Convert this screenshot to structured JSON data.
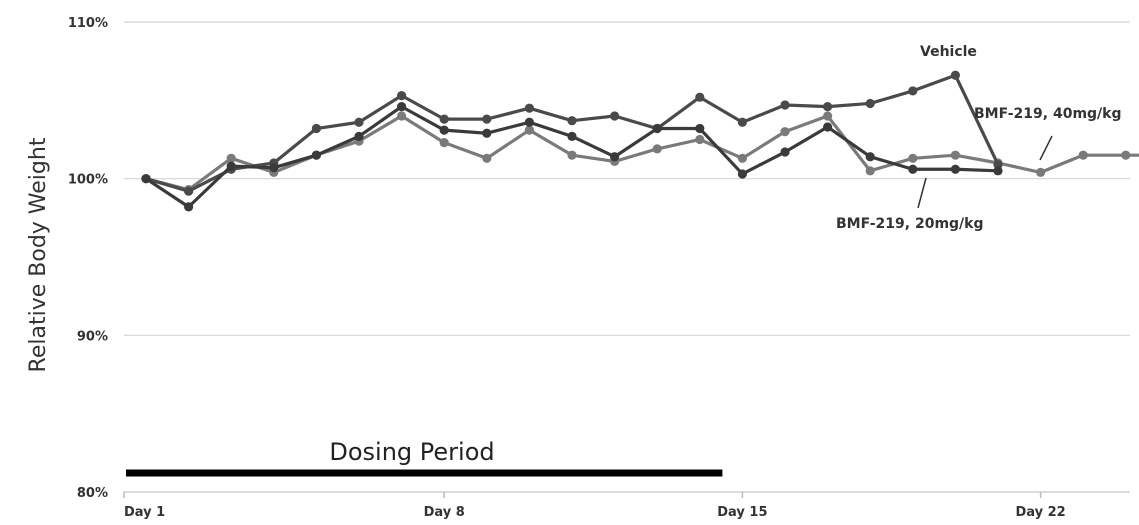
{
  "chart_data": {
    "type": "line",
    "title": "",
    "xlabel": "",
    "ylabel": "Relative Body Weight",
    "ylim": [
      80,
      110
    ],
    "yticks": [
      "110%",
      "100%",
      "90%",
      "80%"
    ],
    "ytick_values": [
      110,
      100,
      90,
      80
    ],
    "xlim": [
      1,
      26.5
    ],
    "xticks": [
      "Day 1",
      "Day 8",
      "Day 15",
      "Day 22"
    ],
    "xtick_values": [
      1,
      8,
      15,
      22
    ],
    "grid": true,
    "series": [
      {
        "name": "Vehicle",
        "color": "#4a4a4a",
        "x": [
          1,
          2,
          3,
          4,
          5,
          6,
          7,
          8,
          9,
          10,
          11,
          12,
          13,
          14,
          15,
          16,
          17,
          18,
          19,
          20,
          21
        ],
        "y": [
          100,
          99.2,
          100.6,
          101,
          103.2,
          103.6,
          105.3,
          103.8,
          103.8,
          104.5,
          103.7,
          104,
          103.2,
          105.2,
          103.6,
          104.7,
          104.6,
          104.8,
          105.6,
          106.6,
          100.9
        ]
      },
      {
        "name": "BMF-219, 40mg/kg",
        "color": "#7a7a7a",
        "x": [
          1,
          2,
          3,
          4,
          5,
          6,
          7,
          8,
          9,
          10,
          11,
          12,
          13,
          14,
          15,
          16,
          17,
          18,
          19,
          20,
          21,
          22,
          23,
          24,
          25
        ],
        "y": [
          100,
          99.3,
          101.3,
          100.4,
          101.5,
          102.4,
          104.0,
          102.3,
          101.3,
          103.1,
          101.5,
          101.1,
          101.9,
          102.5,
          101.3,
          103.0,
          104.0,
          100.5,
          101.3,
          101.5,
          101.0,
          100.4,
          101.5,
          101.5,
          101.5
        ]
      },
      {
        "name": "BMF-219, 20mg/kg",
        "color": "#3a3a3a",
        "x": [
          1,
          2,
          3,
          4,
          5,
          6,
          7,
          8,
          9,
          10,
          11,
          12,
          13,
          14,
          15,
          16,
          17,
          18,
          19,
          20,
          21
        ],
        "y": [
          100,
          98.2,
          100.8,
          100.7,
          101.5,
          102.7,
          104.6,
          103.1,
          102.9,
          103.6,
          102.7,
          101.4,
          103.2,
          103.2,
          100.3,
          101.7,
          103.3,
          101.4,
          100.6,
          100.6,
          100.5
        ]
      }
    ],
    "annotations": [
      {
        "text": "Vehicle"
      },
      {
        "text": "BMF-219, 40mg/kg"
      },
      {
        "text": "BMF-219, 20mg/kg"
      },
      {
        "text": "Dosing Period",
        "x_start": 1,
        "x_end": 15
      }
    ]
  }
}
